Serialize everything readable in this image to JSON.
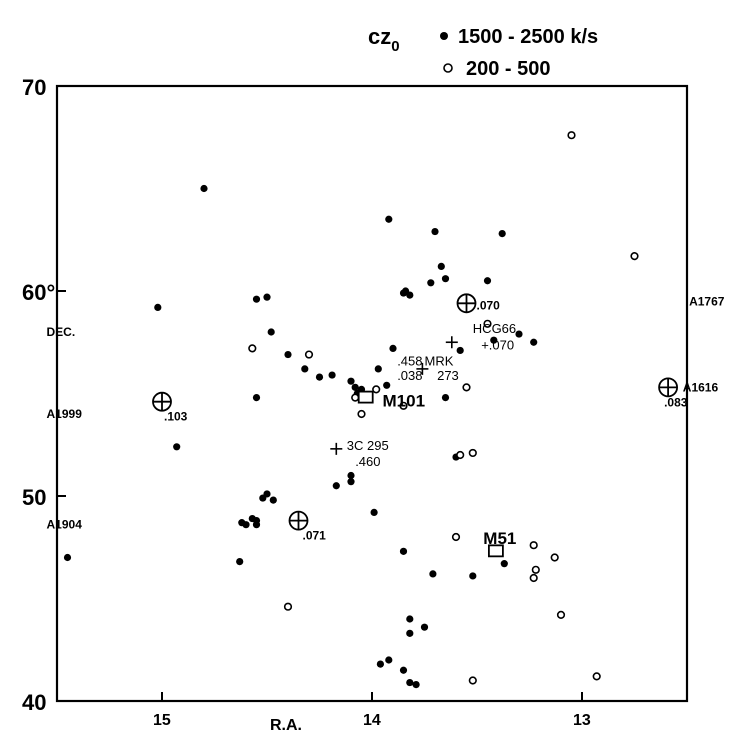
{
  "chart_data": {
    "type": "scatter",
    "xlabel": "R.A.",
    "ylabel": "DEC.",
    "xlim": [
      15.5,
      12.5
    ],
    "ylim": [
      40,
      70
    ],
    "x_ticks": [
      {
        "value": 15,
        "label": "15"
      },
      {
        "value": 14,
        "label": "14"
      },
      {
        "value": 13,
        "label": "13"
      }
    ],
    "y_ticks": [
      {
        "value": 70,
        "label": "70"
      },
      {
        "value": 60,
        "label": "60°"
      },
      {
        "value": 50,
        "label": "50"
      },
      {
        "value": 40,
        "label": "40"
      }
    ],
    "legend": {
      "title": "cz",
      "title_sub": "0",
      "entries": [
        {
          "marker": "filled",
          "label": "1500 - 2500 k/s"
        },
        {
          "marker": "open",
          "label": "200 - 500"
        }
      ]
    },
    "series": [
      {
        "marker": "filled",
        "points": [
          [
            14.8,
            65
          ],
          [
            15.02,
            59.2
          ],
          [
            14.93,
            52.4
          ],
          [
            15.45,
            47
          ],
          [
            14.55,
            59.6
          ],
          [
            14.5,
            59.7
          ],
          [
            14.48,
            58
          ],
          [
            14.4,
            56.9
          ],
          [
            14.32,
            56.2
          ],
          [
            14.55,
            54.8
          ],
          [
            14.25,
            55.8
          ],
          [
            14.19,
            55.9
          ],
          [
            14.1,
            55.6
          ],
          [
            14.08,
            55.3
          ],
          [
            14.07,
            55
          ],
          [
            14.05,
            55.2
          ],
          [
            13.97,
            56.2
          ],
          [
            13.93,
            55.4
          ],
          [
            13.9,
            57.2
          ],
          [
            13.92,
            63.5
          ],
          [
            13.85,
            59.9
          ],
          [
            13.84,
            60
          ],
          [
            13.82,
            59.8
          ],
          [
            13.72,
            60.4
          ],
          [
            13.7,
            62.9
          ],
          [
            13.67,
            61.2
          ],
          [
            13.65,
            60.6
          ],
          [
            13.58,
            57.1
          ],
          [
            13.45,
            60.5
          ],
          [
            13.42,
            57.6
          ],
          [
            13.38,
            62.8
          ],
          [
            13.3,
            57.9
          ],
          [
            13.23,
            57.5
          ],
          [
            13.65,
            54.8
          ],
          [
            13.6,
            51.9
          ],
          [
            14.1,
            51
          ],
          [
            14.1,
            50.7
          ],
          [
            14.17,
            50.5
          ],
          [
            14.5,
            50.1
          ],
          [
            14.52,
            49.9
          ],
          [
            14.47,
            49.8
          ],
          [
            14.55,
            48.8
          ],
          [
            14.55,
            48.6
          ],
          [
            14.57,
            48.9
          ],
          [
            14.6,
            48.6
          ],
          [
            14.62,
            48.7
          ],
          [
            14.63,
            46.8
          ],
          [
            13.99,
            49.2
          ],
          [
            13.85,
            47.3
          ],
          [
            13.71,
            46.2
          ],
          [
            13.52,
            46.1
          ],
          [
            13.37,
            46.7
          ],
          [
            13.82,
            44.0
          ],
          [
            13.82,
            43.3
          ],
          [
            13.75,
            43.6
          ],
          [
            13.92,
            42.0
          ],
          [
            13.96,
            41.8
          ],
          [
            13.85,
            41.5
          ],
          [
            13.82,
            40.9
          ],
          [
            13.79,
            40.8
          ]
        ]
      },
      {
        "marker": "open",
        "points": [
          [
            14.57,
            57.2
          ],
          [
            14.3,
            56.9
          ],
          [
            13.98,
            55.2
          ],
          [
            14.08,
            54.8
          ],
          [
            14.05,
            54.0
          ],
          [
            13.85,
            54.4
          ],
          [
            13.55,
            55.3
          ],
          [
            13.45,
            58.4
          ],
          [
            13.58,
            52.0
          ],
          [
            13.52,
            52.1
          ],
          [
            13.6,
            48.0
          ],
          [
            14.4,
            44.6
          ],
          [
            13.52,
            41.0
          ],
          [
            13.23,
            47.6
          ],
          [
            13.22,
            46.4
          ],
          [
            13.23,
            46.0
          ],
          [
            13.13,
            47.0
          ],
          [
            13.1,
            44.2
          ],
          [
            12.93,
            41.2
          ],
          [
            13.05,
            67.6
          ],
          [
            12.75,
            61.7
          ]
        ]
      }
    ],
    "clusters": [
      {
        "x": 15.0,
        "y": 54.6,
        "label": ".103",
        "label_dx": 2,
        "label_dy": 26
      },
      {
        "x": 14.35,
        "y": 48.8,
        "label": ".071",
        "label_dx": 4,
        "label_dy": 26
      },
      {
        "x": 13.55,
        "y": 59.4,
        "label": ".070",
        "label_dx": 10,
        "label_dy": 0
      },
      {
        "x": 12.59,
        "y": 55.3,
        "label": ".083",
        "label_dx": -4,
        "label_dy": 26
      }
    ],
    "cluster_names": [
      {
        "x": 12.49,
        "y": 59.5,
        "text": "A1767"
      },
      {
        "x": 12.52,
        "y": 55.3,
        "text": "A1616"
      },
      {
        "x": 15.55,
        "y": 54.0,
        "text": "A1999"
      },
      {
        "x": 15.55,
        "y": 48.6,
        "text": "A1904"
      },
      {
        "x": 15.55,
        "y": 58.0,
        "text": "DEC."
      }
    ],
    "plus_markers": [
      {
        "x": 13.62,
        "y": 57.5
      },
      {
        "x": 13.76,
        "y": 56.2
      },
      {
        "x": 14.17,
        "y": 52.3
      }
    ],
    "square_markers": [
      {
        "x": 14.03,
        "y": 54.8
      },
      {
        "x": 13.41,
        "y": 47.3
      }
    ],
    "annotations": [
      {
        "x": 13.52,
        "y": 58.2,
        "text": "HCG66",
        "size": "mid"
      },
      {
        "x": 13.48,
        "y": 57.4,
        "text": "+.070",
        "size": "mid"
      },
      {
        "x": 13.88,
        "y": 56.6,
        "text": ".458",
        "size": "mid"
      },
      {
        "x": 13.75,
        "y": 56.6,
        "text": "MRK",
        "size": "mid"
      },
      {
        "x": 13.88,
        "y": 55.9,
        "text": ".038",
        "size": "mid"
      },
      {
        "x": 13.69,
        "y": 55.9,
        "text": "273",
        "size": "mid"
      },
      {
        "x": 14.12,
        "y": 52.5,
        "text": "3C 295",
        "size": "mid"
      },
      {
        "x": 14.08,
        "y": 51.7,
        "text": ".460",
        "size": "mid"
      },
      {
        "x": 13.95,
        "y": 54.6,
        "text": "M101",
        "size": "big"
      },
      {
        "x": 13.47,
        "y": 47.9,
        "text": "M51",
        "size": "big"
      }
    ]
  }
}
